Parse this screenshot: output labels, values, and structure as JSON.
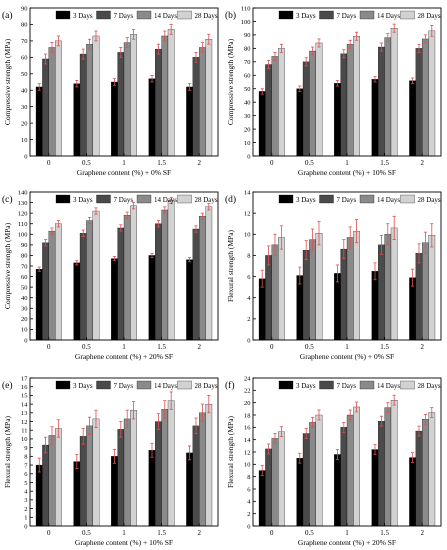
{
  "legend_labels": [
    "3 Days",
    "7 Days",
    "14 Days",
    "28 Days"
  ],
  "colors": {
    "series": [
      "#000000",
      "#4a4a4a",
      "#8a8a8a",
      "#d2d2d2"
    ],
    "error_bar": "#e05050",
    "axis": "#000000"
  },
  "chart_data": [
    {
      "type": "bar",
      "panel_label": "(a)",
      "categories": [
        "0",
        "0.5",
        "1",
        "1.5",
        "2"
      ],
      "xlabel": "Graphene content (%) + 0% SF",
      "ylabel": "Compressive strength (MPa)",
      "ylim": [
        0,
        90
      ],
      "yticks": [
        0,
        10,
        20,
        30,
        40,
        50,
        60,
        70,
        80,
        90
      ],
      "legend_position": "top",
      "series": [
        {
          "name": "3 Days",
          "values": [
            42,
            44,
            45,
            47,
            42
          ],
          "errors": [
            2,
            2,
            2,
            2,
            2
          ]
        },
        {
          "name": "7 Days",
          "values": [
            59,
            62,
            63,
            65,
            60
          ],
          "errors": [
            3,
            3,
            3,
            3,
            3
          ]
        },
        {
          "name": "14 Days",
          "values": [
            66,
            68,
            69,
            73,
            66
          ],
          "errors": [
            3,
            3,
            3,
            3,
            3
          ]
        },
        {
          "name": "28 Days",
          "values": [
            70,
            73,
            74,
            77,
            71
          ],
          "errors": [
            3,
            3,
            3,
            3,
            3
          ]
        }
      ]
    },
    {
      "type": "bar",
      "panel_label": "(b)",
      "categories": [
        "0",
        "0.5",
        "1",
        "1.5",
        "2"
      ],
      "xlabel": "Graphene content (%) + 10% SF",
      "ylabel": "Compressive strength (MPa)",
      "ylim": [
        0,
        110
      ],
      "yticks": [
        0,
        10,
        20,
        30,
        40,
        50,
        60,
        70,
        80,
        90,
        100,
        110
      ],
      "legend_position": "top",
      "series": [
        {
          "name": "3 Days",
          "values": [
            48,
            50,
            54,
            57,
            56
          ],
          "errors": [
            2,
            2,
            2,
            2,
            2
          ]
        },
        {
          "name": "7 Days",
          "values": [
            68,
            70,
            76,
            81,
            80
          ],
          "errors": [
            3,
            3,
            3,
            3,
            3
          ]
        },
        {
          "name": "14 Days",
          "values": [
            74,
            78,
            83,
            88,
            87
          ],
          "errors": [
            3,
            3,
            3,
            3,
            3
          ]
        },
        {
          "name": "28 Days",
          "values": [
            80,
            84,
            89,
            95,
            93
          ],
          "errors": [
            3,
            3,
            3,
            3,
            4
          ]
        }
      ]
    },
    {
      "type": "bar",
      "panel_label": "(c)",
      "categories": [
        "0",
        "0.5",
        "1",
        "1.5",
        "2"
      ],
      "xlabel": "Graphene content (%) + 20% SF",
      "ylabel": "Compressive strength (MPa)",
      "ylim": [
        0,
        140
      ],
      "yticks": [
        0,
        10,
        20,
        30,
        40,
        50,
        60,
        70,
        80,
        90,
        100,
        110,
        120,
        130,
        140
      ],
      "legend_position": "top",
      "series": [
        {
          "name": "3 Days",
          "values": [
            67,
            73,
            77,
            80,
            76
          ],
          "errors": [
            2,
            2,
            2,
            2,
            2
          ]
        },
        {
          "name": "7 Days",
          "values": [
            92,
            101,
            106,
            110,
            105
          ],
          "errors": [
            3,
            3,
            3,
            3,
            3
          ]
        },
        {
          "name": "14 Days",
          "values": [
            103,
            113,
            118,
            123,
            117
          ],
          "errors": [
            3,
            3,
            3,
            3,
            3
          ]
        },
        {
          "name": "28 Days",
          "values": [
            110,
            122,
            127,
            132,
            126
          ],
          "errors": [
            3,
            3,
            3,
            3,
            3
          ]
        }
      ]
    },
    {
      "type": "bar",
      "panel_label": "(d)",
      "categories": [
        "0",
        "0.5",
        "1",
        "1.5",
        "2"
      ],
      "xlabel": "Graphene content (%) + 0% SF",
      "ylabel": "Flexural strength (MPa)",
      "ylim": [
        0,
        14
      ],
      "yticks": [
        0,
        2,
        4,
        6,
        8,
        10,
        12,
        14
      ],
      "legend_position": "top",
      "series": [
        {
          "name": "3 Days",
          "values": [
            5.8,
            6.1,
            6.3,
            6.5,
            5.9
          ],
          "errors": [
            0.8,
            0.8,
            0.8,
            0.8,
            0.8
          ]
        },
        {
          "name": "7 Days",
          "values": [
            8.0,
            8.5,
            8.6,
            9.0,
            8.2
          ],
          "errors": [
            0.9,
            0.9,
            0.9,
            0.9,
            0.9
          ]
        },
        {
          "name": "14 Days",
          "values": [
            9.0,
            9.5,
            9.7,
            10.0,
            9.2
          ],
          "errors": [
            1.0,
            1.0,
            1.0,
            1.0,
            1.0
          ]
        },
        {
          "name": "28 Days",
          "values": [
            9.7,
            10.1,
            10.3,
            10.6,
            9.9
          ],
          "errors": [
            1.1,
            1.1,
            1.1,
            1.1,
            1.1
          ]
        }
      ]
    },
    {
      "type": "bar",
      "panel_label": "(e)",
      "categories": [
        "0",
        "0.5",
        "1",
        "1.5",
        "2"
      ],
      "xlabel": "Graphene content (%) + 10% SF",
      "ylabel": "Flexural strength (MPa)",
      "ylim": [
        0,
        17
      ],
      "yticks": [
        0,
        1,
        2,
        3,
        4,
        5,
        6,
        7,
        8,
        9,
        10,
        11,
        12,
        13,
        14,
        15,
        16,
        17
      ],
      "legend_position": "top",
      "series": [
        {
          "name": "3 Days",
          "values": [
            7.0,
            7.4,
            8.0,
            8.7,
            8.4
          ],
          "errors": [
            0.8,
            0.8,
            0.8,
            0.8,
            0.8
          ]
        },
        {
          "name": "7 Days",
          "values": [
            9.3,
            10.3,
            11.1,
            12.0,
            11.5
          ],
          "errors": [
            0.9,
            0.9,
            0.9,
            0.9,
            0.9
          ]
        },
        {
          "name": "14 Days",
          "values": [
            10.4,
            11.5,
            12.3,
            13.4,
            13.0
          ],
          "errors": [
            1.0,
            1.0,
            1.0,
            1.0,
            1.0
          ]
        },
        {
          "name": "28 Days",
          "values": [
            11.2,
            12.3,
            13.3,
            14.4,
            14.0
          ],
          "errors": [
            1.0,
            1.0,
            1.0,
            1.0,
            1.0
          ]
        }
      ]
    },
    {
      "type": "bar",
      "panel_label": "(f)",
      "categories": [
        "0",
        "0.5",
        "1",
        "1.5",
        "2"
      ],
      "xlabel": "Graphene content (%) + 20% SF",
      "ylabel": "Flexural strength (MPa)",
      "ylim": [
        0,
        24
      ],
      "yticks": [
        0,
        2,
        4,
        6,
        8,
        10,
        12,
        14,
        16,
        18,
        20,
        22,
        24
      ],
      "legend_position": "top",
      "series": [
        {
          "name": "3 Days",
          "values": [
            9.0,
            11.0,
            11.6,
            12.4,
            11.1
          ],
          "errors": [
            0.8,
            0.8,
            0.8,
            0.8,
            0.8
          ]
        },
        {
          "name": "7 Days",
          "values": [
            12.5,
            15.0,
            16.0,
            17.0,
            15.4
          ],
          "errors": [
            0.8,
            0.8,
            0.8,
            0.8,
            0.8
          ]
        },
        {
          "name": "14 Days",
          "values": [
            14.2,
            16.8,
            18.0,
            19.2,
            17.3
          ],
          "errors": [
            0.8,
            0.8,
            0.8,
            0.8,
            0.8
          ]
        },
        {
          "name": "28 Days",
          "values": [
            15.3,
            18.0,
            19.3,
            20.4,
            18.4
          ],
          "errors": [
            0.8,
            0.8,
            0.8,
            0.8,
            0.8
          ]
        }
      ]
    }
  ]
}
